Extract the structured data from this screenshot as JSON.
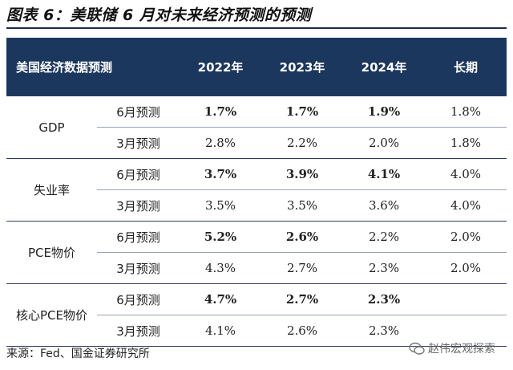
{
  "figure": {
    "title": "图表 6：美联储 6 月对未来经济预测的预测",
    "source": "来源：Fed、国金证券研究所",
    "watermark": "赵伟宏观探索",
    "watermark_icon": "wechat-icon"
  },
  "table": {
    "headers": [
      "美国经济数据预测",
      "2022年",
      "2023年",
      "2024年",
      "长期"
    ],
    "groups": [
      {
        "indicator": "GDP",
        "rows": [
          {
            "label": "6月预测",
            "values": [
              "1.7%",
              "1.7%",
              "1.9%",
              "1.8%"
            ],
            "highlight": [
              true,
              true,
              true,
              false
            ]
          },
          {
            "label": "3月预测",
            "values": [
              "2.8%",
              "2.2%",
              "2.0%",
              "1.8%"
            ],
            "highlight": [
              false,
              false,
              false,
              false
            ]
          }
        ]
      },
      {
        "indicator": "失业率",
        "rows": [
          {
            "label": "6月预测",
            "values": [
              "3.7%",
              "3.9%",
              "4.1%",
              "4.0%"
            ],
            "highlight": [
              true,
              true,
              true,
              false
            ]
          },
          {
            "label": "3月预测",
            "values": [
              "3.5%",
              "3.5%",
              "3.6%",
              "4.0%"
            ],
            "highlight": [
              false,
              false,
              false,
              false
            ]
          }
        ]
      },
      {
        "indicator": "PCE物价",
        "rows": [
          {
            "label": "6月预测",
            "values": [
              "5.2%",
              "2.6%",
              "2.2%",
              "2.0%"
            ],
            "highlight": [
              true,
              true,
              false,
              false
            ]
          },
          {
            "label": "3月预测",
            "values": [
              "4.3%",
              "2.7%",
              "2.3%",
              "2.0%"
            ],
            "highlight": [
              false,
              false,
              false,
              false
            ]
          }
        ]
      },
      {
        "indicator": "核心PCE物价",
        "rows": [
          {
            "label": "6月预测",
            "values": [
              "4.7%",
              "2.7%",
              "2.3%",
              ""
            ],
            "highlight": [
              true,
              true,
              true,
              false
            ]
          },
          {
            "label": "3月预测",
            "values": [
              "4.1%",
              "2.6%",
              "2.3%",
              ""
            ],
            "highlight": [
              false,
              false,
              false,
              false
            ]
          }
        ]
      }
    ]
  },
  "colors": {
    "header_bg": "#1c375e",
    "header_text": "#ffffff",
    "highlight": "#e0201a"
  }
}
